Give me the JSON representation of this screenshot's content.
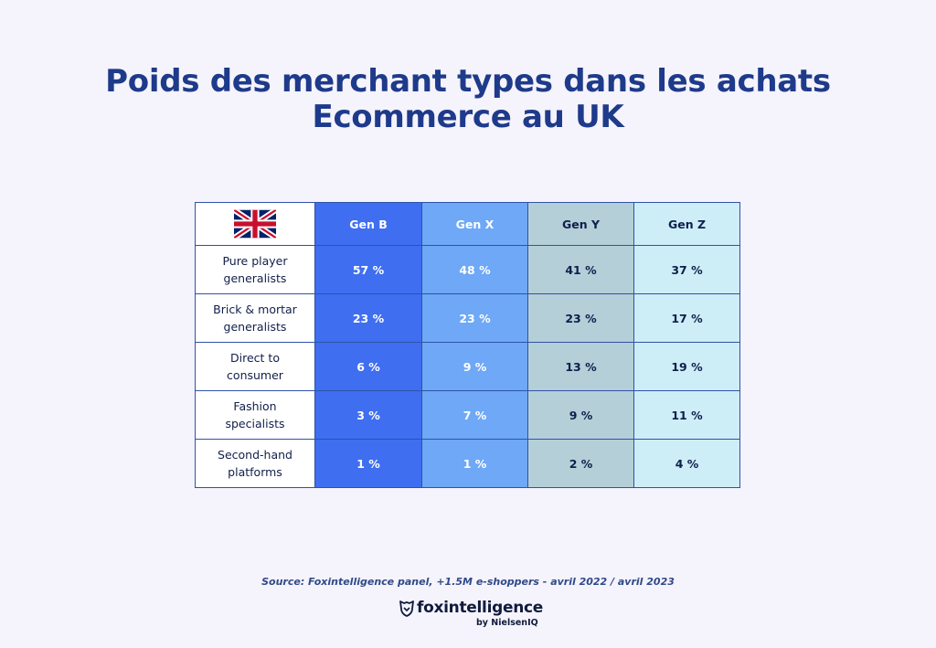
{
  "title": {
    "line1": "Poids des merchant types dans les achats",
    "line2": "Ecommerce au UK"
  },
  "chart_data": {
    "type": "table",
    "corner": "uk-flag-icon",
    "columns": [
      {
        "label": "Gen B",
        "color": "#3f6ef0",
        "text_color": "#ffffff"
      },
      {
        "label": "Gen X",
        "color": "#6ea8f7",
        "text_color": "#ffffff"
      },
      {
        "label": "Gen Y",
        "color": "#b4cfd8",
        "text_color": "#0f1f4a"
      },
      {
        "label": "Gen Z",
        "color": "#cdeef7",
        "text_color": "#0f1f4a"
      }
    ],
    "rows": [
      {
        "label": "Pure player generalists",
        "label_lines": [
          "Pure player",
          "generalists"
        ],
        "values": [
          "57 %",
          "48 %",
          "41 %",
          "37 %"
        ]
      },
      {
        "label": "Brick & mortar generalists",
        "label_lines": [
          "Brick & mortar",
          "generalists"
        ],
        "values": [
          "23 %",
          "23 %",
          "23 %",
          "17 %"
        ]
      },
      {
        "label": "Direct to consumer",
        "label_lines": [
          "Direct to",
          "consumer"
        ],
        "values": [
          "6 %",
          "9 %",
          "13 %",
          "19 %"
        ]
      },
      {
        "label": "Fashion specialists",
        "label_lines": [
          "Fashion",
          "specialists"
        ],
        "values": [
          "3 %",
          "7 %",
          "9 %",
          "11 %"
        ]
      },
      {
        "label": "Second-hand platforms",
        "label_lines": [
          "Second-hand",
          "platforms"
        ],
        "values": [
          "1 %",
          "1 %",
          "2 %",
          "4 %"
        ]
      }
    ]
  },
  "source": "Source: Foxintelligence panel, +1.5M e-shoppers - avril 2022 / avril 2023",
  "brand": {
    "name": "foxintelligence",
    "sub": "by NielsenIQ"
  }
}
